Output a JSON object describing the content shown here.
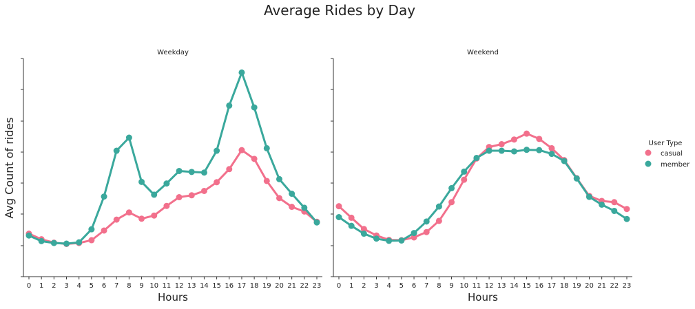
{
  "figure": {
    "title": "Average Rides by Day",
    "ylabel": "Avg Count of rides"
  },
  "legend": {
    "title": "User Type",
    "items": [
      {
        "label": "casual",
        "color": "#f2708c"
      },
      {
        "label": "member",
        "color": "#3aa89c"
      }
    ]
  },
  "chart_data": [
    {
      "type": "line",
      "title": "Weekday",
      "xlabel": "Hours",
      "ylabel": "Avg Count of rides",
      "x": [
        0,
        1,
        2,
        3,
        4,
        5,
        6,
        7,
        8,
        9,
        10,
        11,
        12,
        13,
        14,
        15,
        16,
        17,
        18,
        19,
        20,
        21,
        22,
        23
      ],
      "ylim": [
        0,
        70
      ],
      "y_ticklabels_visible": false,
      "grid": false,
      "legend_position": "right",
      "series": [
        {
          "name": "casual",
          "color": "#f2708c",
          "values": [
            13.8,
            12,
            10.9,
            10.5,
            10.8,
            11.7,
            14.8,
            18.3,
            20.6,
            18.6,
            19.6,
            22.7,
            25.5,
            26.1,
            27.5,
            30.3,
            34.5,
            40.6,
            37.8,
            30.7,
            25.2,
            22.4,
            20.9,
            17.6
          ]
        },
        {
          "name": "member",
          "color": "#3aa89c",
          "values": [
            13.2,
            11.4,
            10.8,
            10.6,
            11,
            15.2,
            25.7,
            40.4,
            44.6,
            30.4,
            26.3,
            29.9,
            33.9,
            33.6,
            33.4,
            40.4,
            54.9,
            65.5,
            54.3,
            41.2,
            31.3,
            26.6,
            22.1,
            17.4
          ]
        }
      ]
    },
    {
      "type": "line",
      "title": "Weekend",
      "xlabel": "Hours",
      "x": [
        0,
        1,
        2,
        3,
        4,
        5,
        6,
        7,
        8,
        9,
        10,
        11,
        12,
        13,
        14,
        15,
        16,
        17,
        18,
        19,
        20,
        21,
        22,
        23
      ],
      "ylim": [
        0,
        70
      ],
      "y_ticklabels_visible": false,
      "grid": false,
      "series": [
        {
          "name": "casual",
          "color": "#f2708c",
          "values": [
            22.6,
            18.9,
            15.3,
            13.2,
            11.8,
            11.7,
            12.6,
            14.3,
            17.9,
            23.9,
            31.1,
            37.9,
            41.6,
            42.5,
            44,
            45.9,
            44.2,
            41.2,
            37.4,
            31.6,
            25.9,
            24.3,
            23.9,
            21.7
          ]
        },
        {
          "name": "member",
          "color": "#3aa89c",
          "values": [
            19.1,
            16.3,
            13.8,
            12.2,
            11.5,
            11.6,
            14,
            17.7,
            22.5,
            28.4,
            33.7,
            38.1,
            40.4,
            40.4,
            40.2,
            40.7,
            40.6,
            39.4,
            37.1,
            31.5,
            25.6,
            23.1,
            21.1,
            18.5
          ]
        }
      ]
    }
  ]
}
